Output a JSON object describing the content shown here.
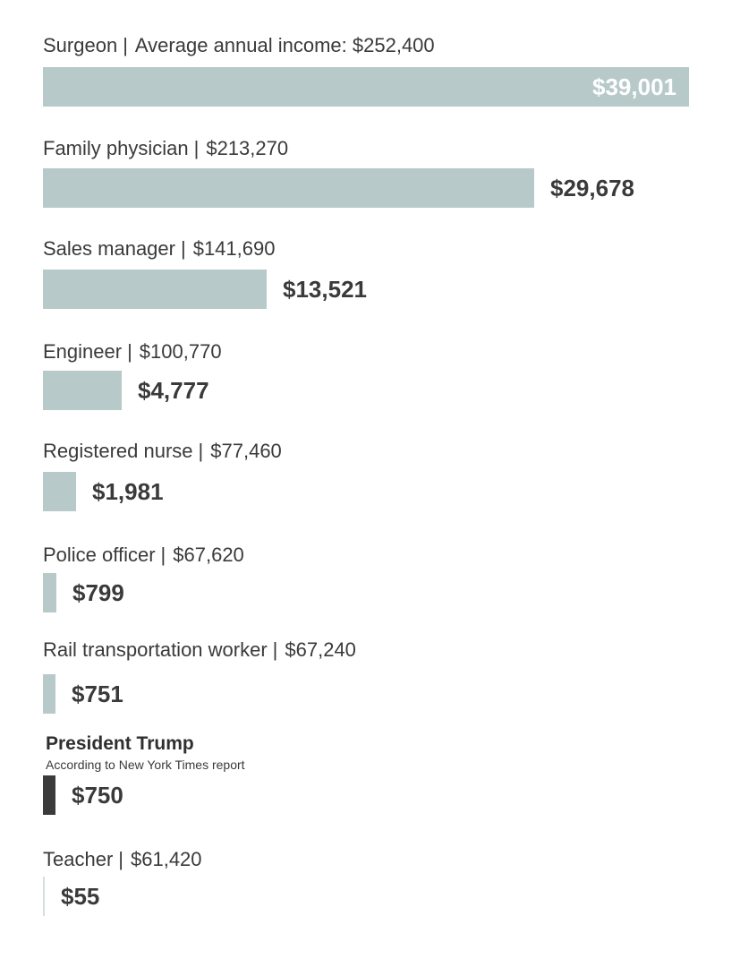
{
  "chart_data": {
    "type": "bar",
    "orientation": "horizontal",
    "title": "",
    "xmax": 39001,
    "series": [
      {
        "category": "Surgeon",
        "label_prefix": "Average annual income: ",
        "income": "$252,400",
        "value": 39001,
        "value_label": "$39,001",
        "highlight": false
      },
      {
        "category": "Family physician",
        "label_prefix": "",
        "income": "$213,270",
        "value": 29678,
        "value_label": "$29,678",
        "highlight": false
      },
      {
        "category": "Sales manager",
        "label_prefix": "",
        "income": "$141,690",
        "value": 13521,
        "value_label": "$13,521",
        "highlight": false
      },
      {
        "category": "Engineer",
        "label_prefix": "",
        "income": "$100,770",
        "value": 4777,
        "value_label": "$4,777",
        "highlight": false
      },
      {
        "category": "Registered nurse",
        "label_prefix": "",
        "income": "$77,460",
        "value": 1981,
        "value_label": "$1,981",
        "highlight": false
      },
      {
        "category": "Police officer",
        "label_prefix": "",
        "income": "$67,620",
        "value": 799,
        "value_label": "$799",
        "highlight": false
      },
      {
        "category": "Rail transportation worker",
        "label_prefix": "",
        "income": "$67,240",
        "value": 751,
        "value_label": "$751",
        "highlight": false
      },
      {
        "category": "President Trump",
        "subtitle": "According to New York Times report",
        "value": 750,
        "value_label": "$750",
        "highlight": true
      },
      {
        "category": "Teacher",
        "label_prefix": "",
        "income": "$61,420",
        "value": 55,
        "value_label": "$55",
        "highlight": false
      }
    ]
  }
}
